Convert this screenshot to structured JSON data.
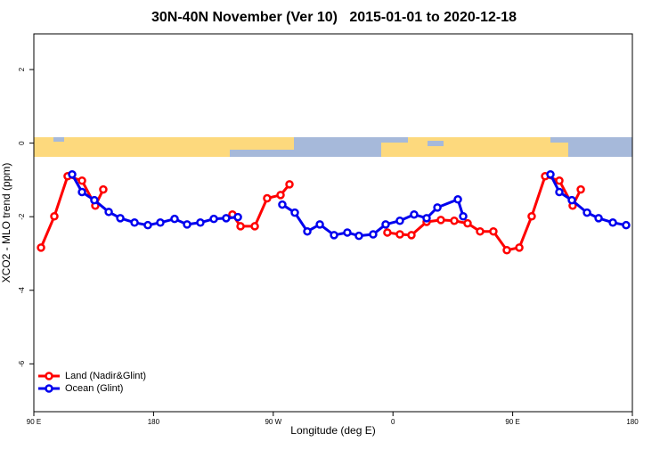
{
  "chart_data": {
    "type": "line",
    "title": "30N-40N November (Ver 10)   2015-01-01 to 2020-12-18",
    "x_label": "Longitude (deg E)",
    "y_label": "XCO2 - MLO trend (ppm)",
    "xlim": [
      90,
      540
    ],
    "ylim": [
      -7.3,
      2.97
    ],
    "xticks": [
      {
        "value": 90,
        "label": "90 E"
      },
      180,
      {
        "value": 270,
        "label": "90 W"
      },
      {
        "value": 360,
        "label": "0"
      },
      {
        "value": 450,
        "label": "90 E"
      },
      {
        "value": 540,
        "label": "180"
      }
    ],
    "yticks": [
      2,
      0,
      -2,
      -4,
      -6
    ],
    "legend": "bottom-left",
    "series": [
      {
        "name": "Land (Nadir&Glint)",
        "color": "#ff0000",
        "x": [
          95.4,
          105.4,
          115.4,
          126.2,
          136.2,
          142.2,
          null,
          239.3,
          245.4,
          256.1,
          265.4,
          275.5,
          282.2,
          null,
          355.8,
          365.2,
          373.9,
          385.3,
          396.0,
          406.1,
          416.1,
          425.5,
          435.5,
          445.6,
          455.0,
          464.3,
          474.4,
          485.1,
          495.1,
          501.2
        ],
        "values": [
          -2.84,
          -1.99,
          -0.9,
          -1.02,
          -1.7,
          -1.26,
          null,
          -1.94,
          -2.26,
          -2.26,
          -1.5,
          -1.41,
          -1.12,
          null,
          -2.43,
          -2.48,
          -2.5,
          -2.14,
          -2.09,
          -2.11,
          -2.18,
          -2.4,
          -2.4,
          -2.91,
          -2.84,
          -1.99,
          -0.9,
          -1.02,
          -1.7,
          -1.26
        ]
      },
      {
        "name": "Ocean (Glint)",
        "color": "#0000ee",
        "x": [
          118.8,
          126.2,
          135.5,
          146.3,
          155.0,
          165.7,
          175.7,
          185.1,
          195.8,
          205.2,
          215.2,
          225.3,
          234.6,
          243.4,
          null,
          276.8,
          286.2,
          295.6,
          305.0,
          315.7,
          325.7,
          334.4,
          345.1,
          354.5,
          365.2,
          375.9,
          385.3,
          393.4,
          408.8,
          412.8,
          null,
          478.4,
          485.1,
          494.5,
          505.9,
          514.6,
          525.3,
          535.3
        ],
        "values": [
          -0.85,
          -1.33,
          -1.55,
          -1.87,
          -2.04,
          -2.16,
          -2.23,
          -2.16,
          -2.06,
          -2.21,
          -2.16,
          -2.06,
          -2.04,
          -2.01,
          null,
          -1.67,
          -1.89,
          -2.4,
          -2.21,
          -2.5,
          -2.43,
          -2.52,
          -2.48,
          -2.21,
          -2.11,
          -1.94,
          -2.04,
          -1.75,
          -1.53,
          -1.99,
          null,
          -0.85,
          -1.33,
          -1.55,
          -1.89,
          -2.04,
          -2.16,
          -2.23
        ]
      }
    ]
  }
}
